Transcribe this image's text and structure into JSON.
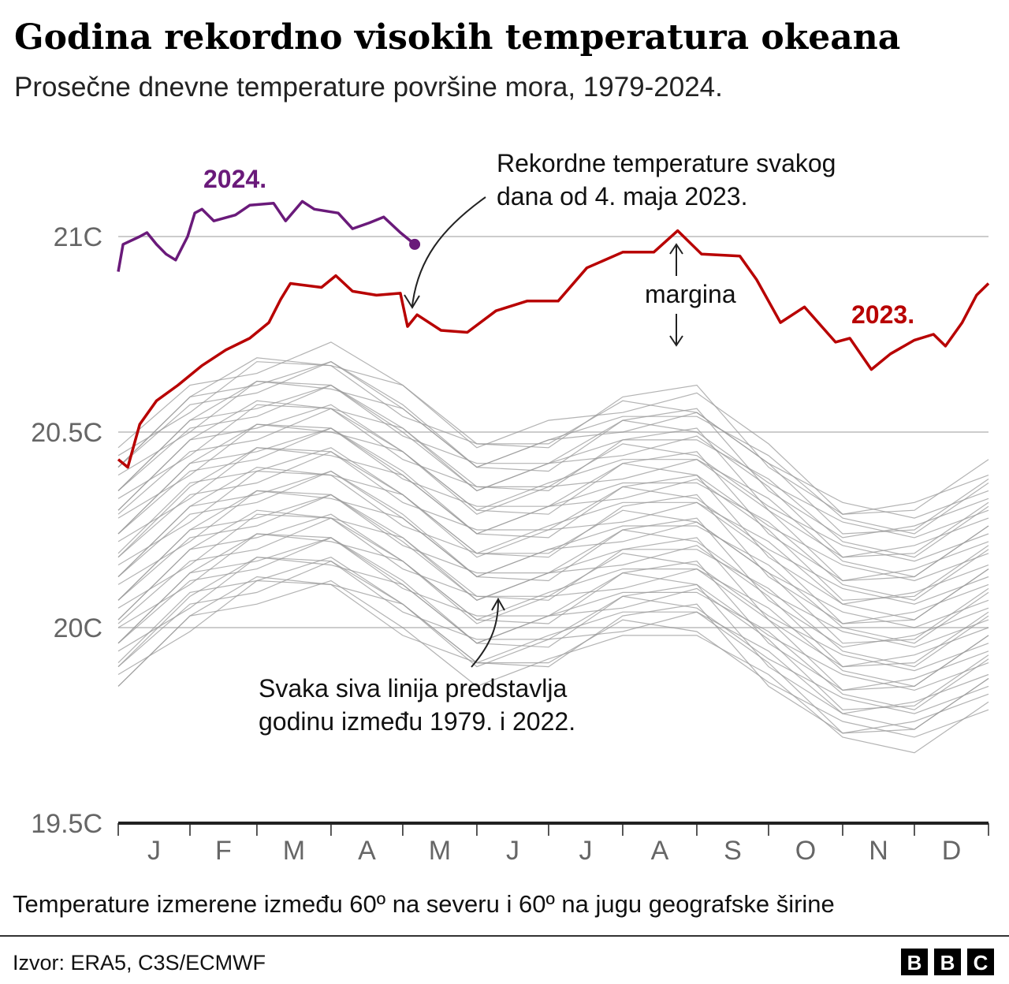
{
  "chart_data": {
    "type": "line",
    "title": "Godina rekordno visokih temperatura okeana",
    "subtitle": "Prosečne dnevne temperature površine mora, 1979-2024.",
    "ylim": [
      19.5,
      21.1
    ],
    "yticks": [
      {
        "value": 21,
        "label": "21C"
      },
      {
        "value": 20.5,
        "label": "20.5C"
      },
      {
        "value": 20,
        "label": "20C"
      },
      {
        "value": 19.5,
        "label": "19.5C"
      }
    ],
    "xlim_days": [
      1,
      365
    ],
    "month_starts_days": [
      1,
      31,
      59,
      90,
      120,
      151,
      181,
      212,
      243,
      273,
      304,
      334,
      365
    ],
    "xtick_labels": [
      "J",
      "F",
      "M",
      "A",
      "M",
      "J",
      "J",
      "A",
      "S",
      "O",
      "N",
      "D"
    ],
    "grid": "horizontal",
    "colors": {
      "y2024": "#6a1a7a",
      "y2023": "#b80000",
      "grey": "#9a9a9a",
      "grid": "#cccccc",
      "axis": "#222222"
    },
    "series": [
      {
        "name": "2024.",
        "x_day": [
          1,
          3,
          10,
          13,
          17,
          21,
          25,
          30,
          33,
          36,
          41,
          50,
          56,
          66,
          71,
          78,
          83,
          93,
          99,
          106,
          112,
          119,
          125
        ],
        "values": [
          20.91,
          20.98,
          21.0,
          21.01,
          20.98,
          20.955,
          20.94,
          21.0,
          21.06,
          21.07,
          21.04,
          21.055,
          21.08,
          21.085,
          21.04,
          21.09,
          21.07,
          21.06,
          21.02,
          21.035,
          21.05,
          21.01,
          20.98
        ]
      },
      {
        "name": "2023.",
        "x_day": [
          1,
          5,
          10,
          17,
          26,
          36,
          46,
          56,
          64,
          69,
          73,
          86,
          92,
          99,
          109,
          119,
          122,
          126,
          136,
          147,
          159,
          172,
          185,
          197,
          212,
          225,
          235,
          245,
          261,
          268,
          278,
          288,
          301,
          307,
          316,
          324,
          334,
          342,
          347,
          354,
          360,
          365
        ],
        "values": [
          20.43,
          20.41,
          20.52,
          20.58,
          20.62,
          20.67,
          20.71,
          20.74,
          20.78,
          20.84,
          20.88,
          20.87,
          20.9,
          20.86,
          20.85,
          20.855,
          20.77,
          20.8,
          20.76,
          20.755,
          20.81,
          20.835,
          20.835,
          20.92,
          20.96,
          20.96,
          21.015,
          20.955,
          20.95,
          20.89,
          20.78,
          20.82,
          20.73,
          20.74,
          20.66,
          20.7,
          20.735,
          20.75,
          20.72,
          20.78,
          20.85,
          20.88
        ]
      }
    ],
    "grey_x_day": [
      1,
      31,
      59,
      90,
      120,
      151,
      181,
      212,
      243,
      273,
      304,
      334,
      365
    ],
    "grey_series": [
      [
        19.85,
        20.03,
        20.06,
        20.12,
        20.0,
        19.85,
        19.92,
        19.98,
        19.98,
        19.88,
        19.72,
        19.68,
        19.81
      ],
      [
        19.88,
        19.99,
        20.12,
        20.11,
        19.98,
        19.91,
        19.91,
        20.02,
        19.99,
        19.86,
        19.76,
        19.72,
        19.79
      ],
      [
        19.85,
        20.03,
        20.13,
        20.11,
        20.06,
        19.91,
        19.9,
        20.03,
        20.06,
        19.85,
        19.73,
        19.76,
        19.83
      ],
      [
        19.9,
        20.06,
        20.09,
        20.17,
        20.06,
        19.9,
        19.97,
        19.99,
        20.04,
        19.91,
        19.73,
        19.74,
        19.87
      ],
      [
        19.91,
        20.09,
        20.12,
        20.18,
        20.06,
        19.91,
        19.98,
        20.04,
        20.04,
        19.94,
        19.78,
        19.74,
        19.87
      ],
      [
        19.94,
        20.05,
        20.18,
        20.17,
        20.04,
        19.97,
        19.97,
        20.08,
        20.05,
        19.92,
        19.82,
        19.78,
        19.85
      ],
      [
        19.9,
        20.08,
        20.18,
        20.16,
        20.11,
        19.96,
        19.95,
        20.08,
        20.11,
        19.9,
        19.78,
        19.81,
        19.88
      ],
      [
        19.96,
        20.12,
        20.15,
        20.23,
        20.12,
        19.96,
        20.03,
        20.05,
        20.1,
        19.97,
        19.79,
        19.8,
        19.93
      ],
      [
        19.96,
        20.14,
        20.17,
        20.23,
        20.11,
        19.96,
        20.03,
        20.09,
        20.09,
        19.99,
        19.83,
        19.79,
        19.92
      ],
      [
        20.0,
        20.11,
        20.24,
        20.23,
        20.1,
        20.03,
        20.03,
        20.14,
        20.11,
        19.98,
        19.88,
        19.84,
        19.91
      ],
      [
        19.96,
        20.14,
        20.24,
        20.22,
        20.17,
        20.02,
        20.01,
        20.14,
        20.17,
        19.96,
        19.84,
        19.87,
        19.94
      ],
      [
        20.01,
        20.17,
        20.2,
        20.28,
        20.17,
        20.01,
        20.08,
        20.1,
        20.15,
        20.02,
        19.84,
        19.85,
        19.98
      ],
      [
        20.02,
        20.2,
        20.23,
        20.29,
        20.17,
        20.02,
        20.09,
        20.15,
        20.15,
        20.05,
        19.89,
        19.85,
        19.98
      ],
      [
        20.05,
        20.16,
        20.29,
        20.28,
        20.15,
        20.08,
        20.08,
        20.19,
        20.16,
        20.03,
        19.93,
        19.89,
        19.96
      ],
      [
        20.02,
        20.2,
        20.3,
        20.28,
        20.23,
        20.08,
        20.07,
        20.2,
        20.23,
        20.02,
        19.9,
        19.93,
        20.0
      ],
      [
        20.07,
        20.23,
        20.26,
        20.34,
        20.23,
        20.07,
        20.14,
        20.16,
        20.21,
        20.08,
        19.9,
        19.91,
        20.04
      ],
      [
        20.07,
        20.25,
        20.28,
        20.34,
        20.22,
        20.07,
        20.14,
        20.2,
        20.2,
        20.1,
        19.94,
        19.9,
        20.03
      ],
      [
        20.11,
        20.22,
        20.35,
        20.34,
        20.21,
        20.14,
        20.14,
        20.25,
        20.22,
        20.09,
        19.99,
        19.95,
        20.02
      ],
      [
        20.07,
        20.25,
        20.35,
        20.33,
        20.28,
        20.13,
        20.12,
        20.25,
        20.28,
        20.07,
        19.95,
        19.98,
        20.05
      ],
      [
        20.13,
        20.29,
        20.32,
        20.4,
        20.29,
        20.13,
        20.2,
        20.22,
        20.27,
        20.14,
        19.96,
        19.97,
        20.1
      ],
      [
        20.13,
        20.31,
        20.34,
        20.4,
        20.28,
        20.13,
        20.2,
        20.26,
        20.26,
        20.16,
        20.0,
        19.96,
        20.09
      ],
      [
        20.16,
        20.27,
        20.4,
        20.39,
        20.26,
        20.19,
        20.19,
        20.3,
        20.27,
        20.14,
        20.04,
        20.0,
        20.07
      ],
      [
        20.13,
        20.31,
        20.41,
        20.39,
        20.34,
        20.19,
        20.18,
        20.31,
        20.34,
        20.13,
        20.01,
        20.04,
        20.11
      ],
      [
        20.18,
        20.34,
        20.37,
        20.45,
        20.34,
        20.18,
        20.25,
        20.27,
        20.32,
        20.19,
        20.01,
        20.02,
        20.15
      ],
      [
        20.19,
        20.37,
        20.4,
        20.46,
        20.34,
        20.19,
        20.26,
        20.32,
        20.32,
        20.22,
        20.06,
        20.02,
        20.15
      ],
      [
        20.22,
        20.33,
        20.46,
        20.45,
        20.32,
        20.25,
        20.25,
        20.36,
        20.33,
        20.2,
        20.1,
        20.06,
        20.13
      ],
      [
        20.18,
        20.36,
        20.46,
        20.44,
        20.39,
        20.24,
        20.23,
        20.36,
        20.39,
        20.18,
        20.06,
        20.09,
        20.16
      ],
      [
        20.24,
        20.4,
        20.43,
        20.51,
        20.4,
        20.24,
        20.31,
        20.33,
        20.38,
        20.25,
        20.07,
        20.08,
        20.21
      ],
      [
        20.24,
        20.42,
        20.45,
        20.51,
        20.39,
        20.24,
        20.31,
        20.37,
        20.37,
        20.27,
        20.11,
        20.07,
        20.2
      ],
      [
        20.28,
        20.39,
        20.52,
        20.51,
        20.38,
        20.31,
        20.31,
        20.42,
        20.39,
        20.26,
        20.16,
        20.12,
        20.19
      ],
      [
        20.24,
        20.42,
        20.52,
        20.5,
        20.45,
        20.3,
        20.29,
        20.42,
        20.45,
        20.24,
        20.12,
        20.15,
        20.22
      ],
      [
        20.29,
        20.45,
        20.48,
        20.56,
        20.45,
        20.29,
        20.36,
        20.38,
        20.43,
        20.3,
        20.12,
        20.13,
        20.26
      ],
      [
        20.3,
        20.48,
        20.51,
        20.57,
        20.45,
        20.3,
        20.37,
        20.43,
        20.43,
        20.33,
        20.17,
        20.13,
        20.26
      ],
      [
        20.33,
        20.44,
        20.57,
        20.56,
        20.43,
        20.36,
        20.36,
        20.47,
        20.44,
        20.31,
        20.21,
        20.17,
        20.24
      ],
      [
        20.3,
        20.48,
        20.58,
        20.56,
        20.51,
        20.36,
        20.35,
        20.48,
        20.51,
        20.3,
        20.18,
        20.21,
        20.28
      ],
      [
        20.35,
        20.51,
        20.54,
        20.62,
        20.51,
        20.35,
        20.42,
        20.44,
        20.49,
        20.36,
        20.18,
        20.19,
        20.32
      ],
      [
        20.35,
        20.53,
        20.56,
        20.62,
        20.5,
        20.35,
        20.42,
        20.48,
        20.48,
        20.38,
        20.22,
        20.18,
        20.31
      ],
      [
        20.39,
        20.5,
        20.63,
        20.62,
        20.49,
        20.42,
        20.42,
        20.53,
        20.5,
        20.37,
        20.27,
        20.23,
        20.3
      ],
      [
        20.35,
        20.53,
        20.63,
        20.61,
        20.56,
        20.41,
        20.4,
        20.53,
        20.56,
        20.35,
        20.23,
        20.26,
        20.33
      ],
      [
        20.41,
        20.57,
        20.6,
        20.68,
        20.57,
        20.41,
        20.48,
        20.5,
        20.55,
        20.42,
        20.24,
        20.25,
        20.38
      ],
      [
        20.41,
        20.59,
        20.62,
        20.68,
        20.56,
        20.41,
        20.48,
        20.54,
        20.54,
        20.44,
        20.28,
        20.24,
        20.37
      ],
      [
        20.44,
        20.55,
        20.68,
        20.67,
        20.54,
        20.47,
        20.47,
        20.58,
        20.55,
        20.42,
        20.32,
        20.28,
        20.35
      ],
      [
        20.41,
        20.59,
        20.69,
        20.67,
        20.62,
        20.47,
        20.46,
        20.59,
        20.62,
        20.41,
        20.29,
        20.32,
        20.39
      ],
      [
        20.46,
        20.62,
        20.65,
        20.73,
        20.62,
        20.46,
        20.53,
        20.55,
        20.6,
        20.47,
        20.29,
        20.3,
        20.43
      ]
    ],
    "annotations": {
      "record_line1": "Rekordne temperature svakog",
      "record_line2": "dana od 4. maja 2023.",
      "margin": "margina",
      "grey_line1": "Svaka siva linija predstavlja",
      "grey_line2": "godinu između 1979. i 2022."
    }
  },
  "footer": {
    "caption": "Temperature izmerene između 60º na severu i 60º na jugu geografske širine",
    "source": "Izvor: ERA5, C3S/ECMWF",
    "logo": [
      "B",
      "B",
      "C"
    ]
  }
}
